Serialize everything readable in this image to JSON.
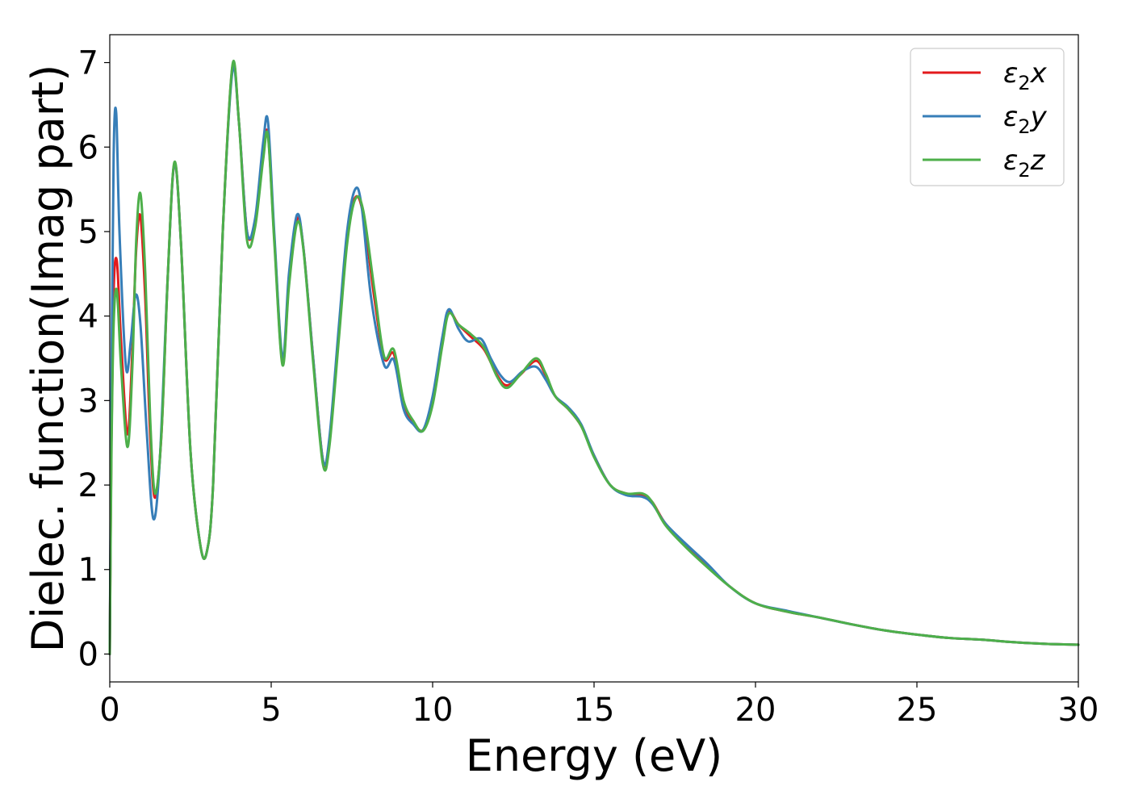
{
  "chart_data": {
    "type": "line",
    "title": "",
    "xlabel": "Energy (eV)",
    "ylabel": "Dielec. function(Imag part)",
    "xlim": [
      0,
      30
    ],
    "ylim": [
      -0.33,
      7.33
    ],
    "xticks": [
      "0",
      "5",
      "10",
      "15",
      "20",
      "25",
      "30"
    ],
    "yticks": [
      "0",
      "1",
      "2",
      "3",
      "4",
      "5",
      "6",
      "7"
    ],
    "grid": false,
    "legend_position": "top-right",
    "series": [
      {
        "name": "ε₂x",
        "legend_symbol": "ε",
        "legend_sub": "2",
        "legend_suffix": "x",
        "color": "#e31a1c",
        "points": [
          [
            0,
            0
          ],
          [
            0.05,
            2.5
          ],
          [
            0.12,
            4.3
          ],
          [
            0.22,
            4.65
          ],
          [
            0.35,
            3.7
          ],
          [
            0.55,
            2.6
          ],
          [
            0.7,
            3.6
          ],
          [
            0.82,
            4.8
          ],
          [
            0.95,
            5.18
          ],
          [
            1.1,
            4.2
          ],
          [
            1.25,
            2.6
          ],
          [
            1.4,
            1.85
          ],
          [
            1.6,
            2.6
          ],
          [
            1.8,
            4.5
          ],
          [
            2.0,
            5.8
          ],
          [
            2.2,
            4.9
          ],
          [
            2.5,
            2.4
          ],
          [
            2.8,
            1.3
          ],
          [
            3.0,
            1.2
          ],
          [
            3.2,
            2.0
          ],
          [
            3.5,
            5.0
          ],
          [
            3.8,
            6.95
          ],
          [
            4.0,
            6.3
          ],
          [
            4.25,
            5.0
          ],
          [
            4.5,
            5.1
          ],
          [
            4.75,
            5.9
          ],
          [
            4.9,
            6.15
          ],
          [
            5.1,
            4.9
          ],
          [
            5.35,
            3.45
          ],
          [
            5.55,
            4.4
          ],
          [
            5.8,
            5.15
          ],
          [
            6.0,
            4.8
          ],
          [
            6.3,
            3.5
          ],
          [
            6.6,
            2.3
          ],
          [
            6.8,
            2.5
          ],
          [
            7.1,
            3.8
          ],
          [
            7.35,
            4.9
          ],
          [
            7.6,
            5.4
          ],
          [
            7.85,
            5.2
          ],
          [
            8.2,
            4.2
          ],
          [
            8.5,
            3.5
          ],
          [
            8.8,
            3.55
          ],
          [
            9.1,
            2.95
          ],
          [
            9.4,
            2.75
          ],
          [
            9.7,
            2.65
          ],
          [
            10.0,
            3.0
          ],
          [
            10.3,
            3.7
          ],
          [
            10.5,
            4.05
          ],
          [
            10.8,
            3.9
          ],
          [
            11.2,
            3.75
          ],
          [
            11.6,
            3.6
          ],
          [
            12.0,
            3.3
          ],
          [
            12.3,
            3.18
          ],
          [
            12.7,
            3.3
          ],
          [
            13.2,
            3.47
          ],
          [
            13.5,
            3.3
          ],
          [
            13.8,
            3.05
          ],
          [
            14.2,
            2.9
          ],
          [
            14.6,
            2.7
          ],
          [
            15.0,
            2.35
          ],
          [
            15.5,
            2.0
          ],
          [
            16.0,
            1.9
          ],
          [
            16.5,
            1.88
          ],
          [
            16.8,
            1.8
          ],
          [
            17.2,
            1.55
          ],
          [
            17.8,
            1.3
          ],
          [
            18.5,
            1.05
          ],
          [
            19.2,
            0.8
          ],
          [
            20.0,
            0.6
          ],
          [
            21.0,
            0.5
          ],
          [
            22.0,
            0.43
          ],
          [
            23.0,
            0.35
          ],
          [
            24.0,
            0.28
          ],
          [
            25.0,
            0.23
          ],
          [
            26.0,
            0.19
          ],
          [
            27.0,
            0.17
          ],
          [
            28.0,
            0.14
          ],
          [
            29.0,
            0.12
          ],
          [
            30.0,
            0.11
          ]
        ]
      },
      {
        "name": "ε₂y",
        "legend_symbol": "ε",
        "legend_sub": "2",
        "legend_suffix": "y",
        "color": "#377eb8",
        "points": [
          [
            0,
            0
          ],
          [
            0.05,
            3.0
          ],
          [
            0.12,
            5.9
          ],
          [
            0.2,
            6.4
          ],
          [
            0.3,
            5.0
          ],
          [
            0.5,
            3.4
          ],
          [
            0.65,
            3.7
          ],
          [
            0.8,
            4.25
          ],
          [
            0.95,
            3.9
          ],
          [
            1.15,
            2.6
          ],
          [
            1.35,
            1.6
          ],
          [
            1.55,
            2.3
          ],
          [
            1.8,
            4.5
          ],
          [
            2.0,
            5.8
          ],
          [
            2.2,
            4.9
          ],
          [
            2.5,
            2.4
          ],
          [
            2.8,
            1.3
          ],
          [
            3.0,
            1.2
          ],
          [
            3.2,
            2.0
          ],
          [
            3.5,
            5.0
          ],
          [
            3.8,
            6.9
          ],
          [
            4.0,
            6.3
          ],
          [
            4.25,
            5.0
          ],
          [
            4.5,
            5.15
          ],
          [
            4.75,
            6.05
          ],
          [
            4.9,
            6.3
          ],
          [
            5.1,
            4.95
          ],
          [
            5.35,
            3.5
          ],
          [
            5.55,
            4.5
          ],
          [
            5.8,
            5.2
          ],
          [
            6.0,
            4.8
          ],
          [
            6.3,
            3.5
          ],
          [
            6.6,
            2.3
          ],
          [
            6.8,
            2.55
          ],
          [
            7.1,
            3.9
          ],
          [
            7.35,
            5.0
          ],
          [
            7.6,
            5.5
          ],
          [
            7.8,
            5.3
          ],
          [
            8.1,
            4.2
          ],
          [
            8.5,
            3.42
          ],
          [
            8.8,
            3.48
          ],
          [
            9.1,
            2.9
          ],
          [
            9.4,
            2.72
          ],
          [
            9.7,
            2.65
          ],
          [
            10.0,
            3.05
          ],
          [
            10.3,
            3.75
          ],
          [
            10.5,
            4.08
          ],
          [
            10.8,
            3.85
          ],
          [
            11.1,
            3.7
          ],
          [
            11.5,
            3.73
          ],
          [
            11.8,
            3.5
          ],
          [
            12.1,
            3.3
          ],
          [
            12.4,
            3.22
          ],
          [
            12.8,
            3.35
          ],
          [
            13.2,
            3.4
          ],
          [
            13.5,
            3.25
          ],
          [
            13.8,
            3.05
          ],
          [
            14.2,
            2.92
          ],
          [
            14.6,
            2.72
          ],
          [
            15.0,
            2.35
          ],
          [
            15.5,
            2.0
          ],
          [
            16.0,
            1.88
          ],
          [
            16.5,
            1.86
          ],
          [
            16.8,
            1.78
          ],
          [
            17.2,
            1.55
          ],
          [
            17.8,
            1.32
          ],
          [
            18.5,
            1.07
          ],
          [
            19.2,
            0.8
          ],
          [
            20.0,
            0.6
          ],
          [
            21.0,
            0.51
          ],
          [
            22.0,
            0.43
          ],
          [
            23.0,
            0.35
          ],
          [
            24.0,
            0.28
          ],
          [
            25.0,
            0.23
          ],
          [
            26.0,
            0.19
          ],
          [
            27.0,
            0.17
          ],
          [
            28.0,
            0.14
          ],
          [
            29.0,
            0.12
          ],
          [
            30.0,
            0.11
          ]
        ]
      },
      {
        "name": "ε₂z",
        "legend_symbol": "ε",
        "legend_sub": "2",
        "legend_suffix": "z",
        "color": "#4daf4a",
        "points": [
          [
            0,
            0
          ],
          [
            0.05,
            2.3
          ],
          [
            0.12,
            3.9
          ],
          [
            0.22,
            4.3
          ],
          [
            0.35,
            3.4
          ],
          [
            0.55,
            2.45
          ],
          [
            0.7,
            3.4
          ],
          [
            0.82,
            4.9
          ],
          [
            0.95,
            5.45
          ],
          [
            1.1,
            4.5
          ],
          [
            1.25,
            2.8
          ],
          [
            1.4,
            1.9
          ],
          [
            1.6,
            2.6
          ],
          [
            1.8,
            4.5
          ],
          [
            2.0,
            5.82
          ],
          [
            2.2,
            4.9
          ],
          [
            2.5,
            2.4
          ],
          [
            2.8,
            1.3
          ],
          [
            3.0,
            1.2
          ],
          [
            3.2,
            2.0
          ],
          [
            3.5,
            5.0
          ],
          [
            3.8,
            6.97
          ],
          [
            4.0,
            6.3
          ],
          [
            4.25,
            4.9
          ],
          [
            4.5,
            5.05
          ],
          [
            4.75,
            5.85
          ],
          [
            4.9,
            6.13
          ],
          [
            5.1,
            4.85
          ],
          [
            5.35,
            3.42
          ],
          [
            5.55,
            4.35
          ],
          [
            5.8,
            5.1
          ],
          [
            6.0,
            4.78
          ],
          [
            6.3,
            3.45
          ],
          [
            6.6,
            2.25
          ],
          [
            6.8,
            2.45
          ],
          [
            7.1,
            3.75
          ],
          [
            7.35,
            4.85
          ],
          [
            7.6,
            5.38
          ],
          [
            7.85,
            5.25
          ],
          [
            8.2,
            4.3
          ],
          [
            8.5,
            3.52
          ],
          [
            8.8,
            3.6
          ],
          [
            9.1,
            3.0
          ],
          [
            9.4,
            2.76
          ],
          [
            9.7,
            2.64
          ],
          [
            10.0,
            2.95
          ],
          [
            10.3,
            3.65
          ],
          [
            10.5,
            4.03
          ],
          [
            10.8,
            3.9
          ],
          [
            11.2,
            3.78
          ],
          [
            11.6,
            3.62
          ],
          [
            12.0,
            3.28
          ],
          [
            12.3,
            3.15
          ],
          [
            12.7,
            3.3
          ],
          [
            13.2,
            3.5
          ],
          [
            13.5,
            3.32
          ],
          [
            13.8,
            3.05
          ],
          [
            14.2,
            2.9
          ],
          [
            14.6,
            2.7
          ],
          [
            15.0,
            2.33
          ],
          [
            15.5,
            2.0
          ],
          [
            16.0,
            1.9
          ],
          [
            16.5,
            1.9
          ],
          [
            16.8,
            1.8
          ],
          [
            17.2,
            1.53
          ],
          [
            17.8,
            1.28
          ],
          [
            18.5,
            1.03
          ],
          [
            19.2,
            0.8
          ],
          [
            20.0,
            0.6
          ],
          [
            21.0,
            0.5
          ],
          [
            22.0,
            0.43
          ],
          [
            23.0,
            0.35
          ],
          [
            24.0,
            0.28
          ],
          [
            25.0,
            0.23
          ],
          [
            26.0,
            0.19
          ],
          [
            27.0,
            0.17
          ],
          [
            28.0,
            0.14
          ],
          [
            29.0,
            0.12
          ],
          [
            30.0,
            0.11
          ]
        ]
      }
    ]
  }
}
